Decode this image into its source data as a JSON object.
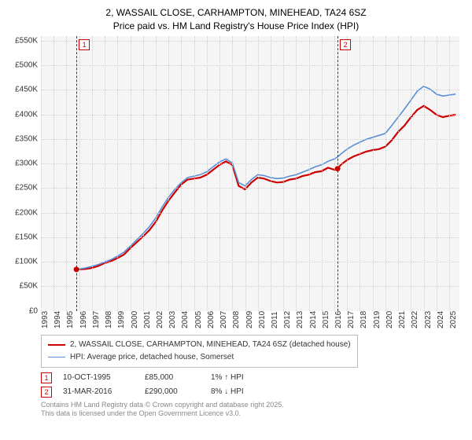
{
  "title": {
    "line1": "2, WASSAIL CLOSE, CARHAMPTON, MINEHEAD, TA24 6SZ",
    "line2": "Price paid vs. HM Land Registry's House Price Index (HPI)"
  },
  "chart": {
    "type": "line",
    "background_color": "#f5f5f5",
    "grid_color": "#d0d0d0",
    "xlim": [
      1993,
      2025.8
    ],
    "ylim": [
      0,
      560000
    ],
    "y_ticks": [
      0,
      50000,
      100000,
      150000,
      200000,
      250000,
      300000,
      350000,
      400000,
      450000,
      500000,
      550000
    ],
    "y_tick_labels": [
      "£0",
      "£50K",
      "£100K",
      "£150K",
      "£200K",
      "£250K",
      "£300K",
      "£350K",
      "£400K",
      "£450K",
      "£500K",
      "£550K"
    ],
    "x_ticks": [
      1993,
      1994,
      1995,
      1996,
      1997,
      1998,
      1999,
      2000,
      2001,
      2002,
      2003,
      2004,
      2005,
      2006,
      2007,
      2008,
      2009,
      2010,
      2011,
      2012,
      2013,
      2014,
      2015,
      2016,
      2017,
      2018,
      2019,
      2020,
      2021,
      2022,
      2023,
      2024,
      2025
    ],
    "series": [
      {
        "name": "price_paid",
        "color": "#cc0000",
        "width": 2.2,
        "points": [
          [
            1995.78,
            85000
          ],
          [
            1996.0,
            85000
          ],
          [
            1996.5,
            86000
          ],
          [
            1997.0,
            88000
          ],
          [
            1997.5,
            92000
          ],
          [
            1998.0,
            98000
          ],
          [
            1998.5,
            102000
          ],
          [
            1999.0,
            108000
          ],
          [
            1999.5,
            115000
          ],
          [
            2000.0,
            128000
          ],
          [
            2000.5,
            140000
          ],
          [
            2001.0,
            152000
          ],
          [
            2001.5,
            165000
          ],
          [
            2002.0,
            182000
          ],
          [
            2002.5,
            205000
          ],
          [
            2003.0,
            225000
          ],
          [
            2003.5,
            242000
          ],
          [
            2004.0,
            258000
          ],
          [
            2004.5,
            268000
          ],
          [
            2005.0,
            270000
          ],
          [
            2005.5,
            272000
          ],
          [
            2006.0,
            278000
          ],
          [
            2006.5,
            288000
          ],
          [
            2007.0,
            298000
          ],
          [
            2007.5,
            305000
          ],
          [
            2008.0,
            298000
          ],
          [
            2008.5,
            255000
          ],
          [
            2009.0,
            248000
          ],
          [
            2009.5,
            262000
          ],
          [
            2010.0,
            272000
          ],
          [
            2010.5,
            270000
          ],
          [
            2011.0,
            265000
          ],
          [
            2011.5,
            262000
          ],
          [
            2012.0,
            263000
          ],
          [
            2012.5,
            268000
          ],
          [
            2013.0,
            270000
          ],
          [
            2013.5,
            275000
          ],
          [
            2014.0,
            278000
          ],
          [
            2014.5,
            283000
          ],
          [
            2015.0,
            285000
          ],
          [
            2015.5,
            292000
          ],
          [
            2016.0,
            288000
          ],
          [
            2016.25,
            290000
          ],
          [
            2016.5,
            298000
          ],
          [
            2017.0,
            308000
          ],
          [
            2017.5,
            315000
          ],
          [
            2018.0,
            320000
          ],
          [
            2018.5,
            325000
          ],
          [
            2019.0,
            328000
          ],
          [
            2019.5,
            330000
          ],
          [
            2020.0,
            335000
          ],
          [
            2020.5,
            348000
          ],
          [
            2021.0,
            365000
          ],
          [
            2021.5,
            378000
          ],
          [
            2022.0,
            395000
          ],
          [
            2022.5,
            410000
          ],
          [
            2023.0,
            418000
          ],
          [
            2023.5,
            410000
          ],
          [
            2024.0,
            400000
          ],
          [
            2024.5,
            395000
          ],
          [
            2025.0,
            398000
          ],
          [
            2025.5,
            400000
          ]
        ]
      },
      {
        "name": "hpi",
        "color": "#5b8fd6",
        "width": 1.6,
        "points": [
          [
            1995.78,
            85000
          ],
          [
            1996.0,
            86000
          ],
          [
            1996.5,
            88000
          ],
          [
            1997.0,
            91000
          ],
          [
            1997.5,
            95000
          ],
          [
            1998.0,
            100000
          ],
          [
            1998.5,
            105000
          ],
          [
            1999.0,
            112000
          ],
          [
            1999.5,
            120000
          ],
          [
            2000.0,
            132000
          ],
          [
            2000.5,
            145000
          ],
          [
            2001.0,
            158000
          ],
          [
            2001.5,
            172000
          ],
          [
            2002.0,
            190000
          ],
          [
            2002.5,
            212000
          ],
          [
            2003.0,
            232000
          ],
          [
            2003.5,
            248000
          ],
          [
            2004.0,
            262000
          ],
          [
            2004.5,
            272000
          ],
          [
            2005.0,
            275000
          ],
          [
            2005.5,
            278000
          ],
          [
            2006.0,
            284000
          ],
          [
            2006.5,
            294000
          ],
          [
            2007.0,
            304000
          ],
          [
            2007.5,
            310000
          ],
          [
            2008.0,
            302000
          ],
          [
            2008.5,
            262000
          ],
          [
            2009.0,
            255000
          ],
          [
            2009.5,
            268000
          ],
          [
            2010.0,
            278000
          ],
          [
            2010.5,
            276000
          ],
          [
            2011.0,
            272000
          ],
          [
            2011.5,
            270000
          ],
          [
            2012.0,
            271000
          ],
          [
            2012.5,
            275000
          ],
          [
            2013.0,
            278000
          ],
          [
            2013.5,
            283000
          ],
          [
            2014.0,
            288000
          ],
          [
            2014.5,
            294000
          ],
          [
            2015.0,
            298000
          ],
          [
            2015.5,
            305000
          ],
          [
            2016.0,
            310000
          ],
          [
            2016.25,
            314000
          ],
          [
            2016.5,
            320000
          ],
          [
            2017.0,
            330000
          ],
          [
            2017.5,
            338000
          ],
          [
            2018.0,
            344000
          ],
          [
            2018.5,
            350000
          ],
          [
            2019.0,
            354000
          ],
          [
            2019.5,
            358000
          ],
          [
            2020.0,
            362000
          ],
          [
            2020.5,
            378000
          ],
          [
            2021.0,
            395000
          ],
          [
            2021.5,
            412000
          ],
          [
            2022.0,
            430000
          ],
          [
            2022.5,
            448000
          ],
          [
            2023.0,
            458000
          ],
          [
            2023.5,
            452000
          ],
          [
            2024.0,
            442000
          ],
          [
            2024.5,
            438000
          ],
          [
            2025.0,
            440000
          ],
          [
            2025.5,
            442000
          ]
        ]
      }
    ],
    "sale_markers": [
      {
        "label": "1",
        "x": 1995.78,
        "y": 85000
      },
      {
        "label": "2",
        "x": 2016.25,
        "y": 290000
      }
    ]
  },
  "legend": {
    "items": [
      {
        "color": "#cc0000",
        "width": 2.2,
        "label": "2, WASSAIL CLOSE, CARHAMPTON, MINEHEAD, TA24 6SZ (detached house)"
      },
      {
        "color": "#5b8fd6",
        "width": 1.6,
        "label": "HPI: Average price, detached house, Somerset"
      }
    ]
  },
  "sales": [
    {
      "marker": "1",
      "date": "10-OCT-1995",
      "price": "£85,000",
      "pct": "1% ↑ HPI"
    },
    {
      "marker": "2",
      "date": "31-MAR-2016",
      "price": "£290,000",
      "pct": "8% ↓ HPI"
    }
  ],
  "footer": {
    "line1": "Contains HM Land Registry data © Crown copyright and database right 2025.",
    "line2": "This data is licensed under the Open Government Licence v3.0."
  }
}
